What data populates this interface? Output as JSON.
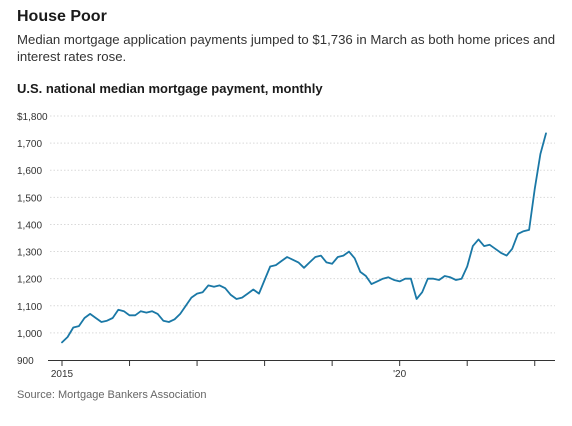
{
  "header": {
    "title": "House Poor",
    "subtitle": "Median mortgage application payments jumped to $1,736 in March as both home prices and interest rates rose.",
    "chart_title": "U.S. national median mortgage payment, monthly",
    "source": "Source: Mortgage Bankers Association"
  },
  "colors": {
    "line": "#1a78a6",
    "grid": "#d9d9d9",
    "axis": "#333333"
  },
  "chart_data": {
    "type": "line",
    "title": "U.S. national median mortgage payment, monthly",
    "xlabel": "",
    "ylabel": "",
    "ylim": [
      900,
      1800
    ],
    "xlim": [
      "2015-01",
      "2022-03"
    ],
    "grid": true,
    "y_ticks": [
      900,
      1000,
      1100,
      1200,
      1300,
      1400,
      1500,
      1600,
      1700,
      1800
    ],
    "y_tick_labels": [
      "900",
      "1,000",
      "1,100",
      "1,200",
      "1,300",
      "1,400",
      "1,500",
      "1,600",
      "1,700",
      "$1,800"
    ],
    "x_tick_labels": [
      {
        "x": "2015-01",
        "label": "2015"
      },
      {
        "x": "2016-01",
        "label": ""
      },
      {
        "x": "2017-01",
        "label": ""
      },
      {
        "x": "2018-01",
        "label": ""
      },
      {
        "x": "2019-01",
        "label": ""
      },
      {
        "x": "2020-01",
        "label": "'20"
      },
      {
        "x": "2021-01",
        "label": ""
      },
      {
        "x": "2022-01",
        "label": ""
      }
    ],
    "series": [
      {
        "x": [
          "2015-01",
          "2015-02",
          "2015-03",
          "2015-04",
          "2015-05",
          "2015-06",
          "2015-07",
          "2015-08",
          "2015-09",
          "2015-10",
          "2015-11",
          "2015-12",
          "2016-01",
          "2016-02",
          "2016-03",
          "2016-04",
          "2016-05",
          "2016-06",
          "2016-07",
          "2016-08",
          "2016-09",
          "2016-10",
          "2016-11",
          "2016-12",
          "2017-01",
          "2017-02",
          "2017-03",
          "2017-04",
          "2017-05",
          "2017-06",
          "2017-07",
          "2017-08",
          "2017-09",
          "2017-10",
          "2017-11",
          "2017-12",
          "2018-01",
          "2018-02",
          "2018-03",
          "2018-04",
          "2018-05",
          "2018-06",
          "2018-07",
          "2018-08",
          "2018-09",
          "2018-10",
          "2018-11",
          "2018-12",
          "2019-01",
          "2019-02",
          "2019-03",
          "2019-04",
          "2019-05",
          "2019-06",
          "2019-07",
          "2019-08",
          "2019-09",
          "2019-10",
          "2019-11",
          "2019-12",
          "2020-01",
          "2020-02",
          "2020-03",
          "2020-04",
          "2020-05",
          "2020-06",
          "2020-07",
          "2020-08",
          "2020-09",
          "2020-10",
          "2020-11",
          "2020-12",
          "2021-01",
          "2021-02",
          "2021-03",
          "2021-04",
          "2021-05",
          "2021-06",
          "2021-07",
          "2021-08",
          "2021-09",
          "2021-10",
          "2021-11",
          "2021-12",
          "2022-01",
          "2022-02",
          "2022-03"
        ],
        "values": [
          965,
          985,
          1020,
          1025,
          1055,
          1070,
          1055,
          1040,
          1045,
          1055,
          1085,
          1080,
          1065,
          1065,
          1080,
          1075,
          1080,
          1070,
          1045,
          1040,
          1050,
          1070,
          1100,
          1130,
          1145,
          1150,
          1175,
          1170,
          1175,
          1165,
          1140,
          1125,
          1130,
          1145,
          1160,
          1145,
          1195,
          1245,
          1250,
          1265,
          1280,
          1270,
          1260,
          1240,
          1260,
          1280,
          1285,
          1260,
          1255,
          1280,
          1285,
          1300,
          1275,
          1225,
          1210,
          1180,
          1190,
          1200,
          1205,
          1195,
          1190,
          1200,
          1200,
          1125,
          1150,
          1200,
          1200,
          1195,
          1210,
          1205,
          1195,
          1200,
          1245,
          1320,
          1345,
          1320,
          1325,
          1310,
          1295,
          1285,
          1310,
          1365,
          1375,
          1380,
          1530,
          1660,
          1736
        ]
      }
    ]
  }
}
